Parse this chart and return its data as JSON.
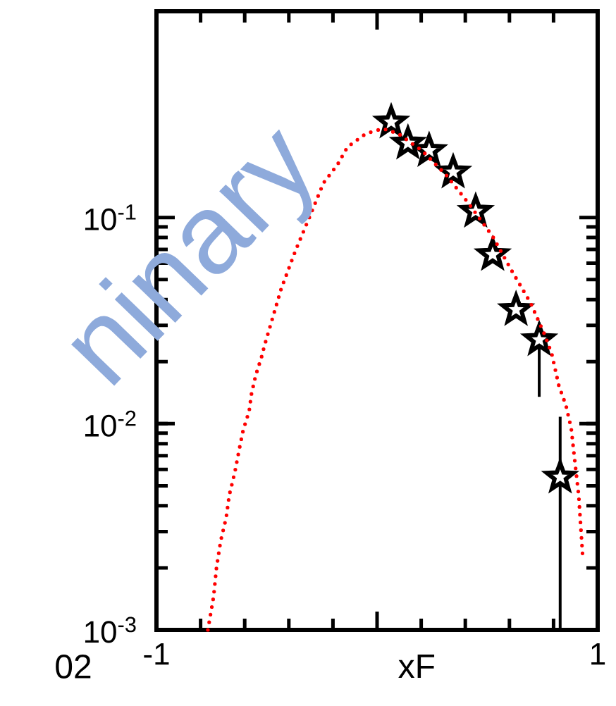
{
  "chart_data": {
    "type": "scatter",
    "xlabel": "xF",
    "log": "y",
    "xlim": [
      -1,
      1
    ],
    "ylim": [
      0.001,
      1
    ],
    "xticks": [
      {
        "value": -1,
        "label": "-1"
      },
      {
        "value": 0,
        "label": null
      },
      {
        "value": 1,
        "label": "1"
      }
    ],
    "yticks": [
      {
        "value": 0.001,
        "label": "10$^{-3}$"
      },
      {
        "value": 0.01,
        "label": "10$^{-2}$"
      },
      {
        "value": 0.1,
        "label": "10$^{-1}$"
      }
    ],
    "grid": false,
    "annotations": [
      "ninary",
      "02"
    ],
    "series": [
      {
        "marker": "star",
        "color": "#000000",
        "x": [
          0.064,
          0.14,
          0.236,
          0.345,
          0.447,
          0.524,
          0.63,
          0.735,
          0.83
        ],
        "values": [
          0.29,
          0.229,
          0.211,
          0.166,
          0.107,
          0.066,
          0.0357,
          0.0255,
          0.0055
        ],
        "errors": [
          null,
          null,
          null,
          null,
          null,
          null,
          null,
          [
            0.0135,
            0.031
          ],
          [
            0.001,
            0.0108
          ]
        ]
      },
      {
        "type": "line",
        "line_style": "dotted",
        "color": "#ff0000",
        "x": [
          -0.767,
          -0.741,
          -0.728,
          -0.709,
          -0.684,
          -0.67,
          -0.645,
          -0.626,
          -0.607,
          -0.58,
          -0.569,
          -0.55,
          -0.524,
          -0.51,
          -0.435,
          -0.37,
          -0.307,
          -0.243,
          -0.18,
          -0.134,
          -0.051,
          0.026,
          0.096,
          0.204,
          0.313,
          0.415,
          0.524,
          0.607,
          0.696,
          0.76,
          0.792,
          0.824,
          0.856,
          0.88,
          0.895,
          0.914,
          0.933
        ],
        "values": [
          0.001,
          0.00145,
          0.002,
          0.0027,
          0.0035,
          0.0045,
          0.0058,
          0.0074,
          0.0093,
          0.0115,
          0.014,
          0.0172,
          0.021,
          0.024,
          0.045,
          0.069,
          0.1,
          0.147,
          0.18,
          0.22,
          0.255,
          0.27,
          0.255,
          0.211,
          0.161,
          0.117,
          0.081,
          0.056,
          0.0385,
          0.027,
          0.0218,
          0.0153,
          0.0123,
          0.0095,
          0.0068,
          0.0045,
          0.0022
        ]
      }
    ]
  }
}
